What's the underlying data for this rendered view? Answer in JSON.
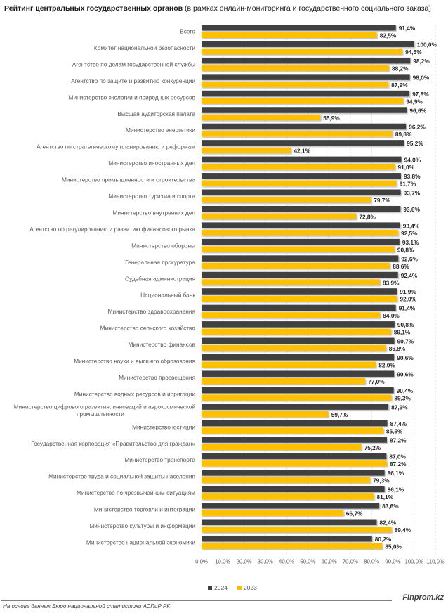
{
  "title_bold": "Рейтинг центральных государственных органов",
  "title_rest": " (в рамках онлайн-мониторинга и государственного социального заказа)",
  "legend": [
    {
      "label": "2024",
      "color": "#404040"
    },
    {
      "label": "2023",
      "color": "#ffc000"
    }
  ],
  "footer": {
    "source": "На основе данных Бюро национальной статистики АСПиР РК",
    "brand": "Finprom.kz"
  },
  "chart_data": {
    "type": "bar",
    "orientation": "horizontal",
    "title": "Рейтинг центральных государственных органов (в рамках онлайн-мониторинга и государственного социального заказа)",
    "xlabel": "",
    "ylabel": "",
    "xlim": [
      0,
      110
    ],
    "x_ticks": [
      "0,0%",
      "10,0%",
      "20,0%",
      "30,0%",
      "40,0%",
      "50,0%",
      "60,0%",
      "70,0%",
      "80,0%",
      "90,0%",
      "100,0%",
      "110,0%"
    ],
    "grid": "vertical dashed",
    "legend_position": "bottom",
    "categories": [
      "Всего",
      "Комитет национальной безопасности",
      "Агентство по делам государственной службы",
      "Агентство по защите и развитию конкуренции",
      "Министерство экологии и природных ресурсов",
      "Высшая аудиторская палата",
      "Министерство энергетики",
      "Агентство по стратегическому планированию и реформам",
      "Министерство иностранных дел",
      "Министерство промышленности и строительства",
      "Министерство туризма и спорта",
      "Министерство внутренних дел",
      "Агентство по регулированию и развитию финансового рынка",
      "Министерство обороны",
      "Генеральная прокуратура",
      "Судебная администрация",
      "Национальный банк",
      "Министерство здравоохранения",
      "Министерство сельского хозяйства",
      "Министерство финансов",
      "Министерство науки и высшего образования",
      "Министерство просвещения",
      "Министерство водных ресурсов и ирригации",
      "Министерство цифрового развития, инноваций и аэрокосмической|промышленности",
      "Министерство юстиции",
      "Государственная корпорация «Правительство для граждан»",
      "Министерство транспорта",
      "Министерство труда и социальной защиты населения",
      "Министерство по чрезвычайным ситуациям",
      "Министерство торговли и интеграции",
      "Министерство культуры и информации",
      "Министерство национальной экономики"
    ],
    "series": [
      {
        "name": "2024",
        "color": "#404040",
        "values": [
          91.4,
          100.0,
          98.2,
          98.0,
          97.8,
          96.6,
          96.2,
          95.2,
          94.0,
          93.8,
          93.7,
          93.6,
          93.4,
          93.1,
          92.6,
          92.4,
          91.9,
          91.4,
          90.8,
          90.7,
          90.6,
          90.6,
          90.4,
          87.9,
          87.4,
          87.2,
          87.0,
          86.1,
          86.1,
          83.6,
          82.4,
          80.2
        ],
        "labels": [
          "91,4%",
          "100,0%",
          "98,2%",
          "98,0%",
          "97,8%",
          "96,6%",
          "96,2%",
          "95,2%",
          "94,0%",
          "93,8%",
          "93,7%",
          "93,6%",
          "93,4%",
          "93,1%",
          "92,6%",
          "92,4%",
          "91,9%",
          "91,4%",
          "90,8%",
          "90,7%",
          "90,6%",
          "90,6%",
          "90,4%",
          "87,9%",
          "87,4%",
          "87,2%",
          "87,0%",
          "86,1%",
          "86,1%",
          "83,6%",
          "82,4%",
          "80,2%"
        ]
      },
      {
        "name": "2023",
        "color": "#ffc000",
        "values": [
          82.5,
          94.5,
          88.2,
          87.9,
          94.9,
          55.9,
          89.8,
          42.1,
          91.0,
          91.7,
          79.7,
          72.8,
          92.5,
          90.8,
          88.6,
          83.9,
          92.0,
          84.0,
          89.1,
          86.8,
          82.0,
          77.0,
          89.3,
          59.7,
          85.5,
          75.2,
          87.2,
          79.3,
          81.1,
          66.7,
          89.4,
          85.0
        ],
        "labels": [
          "82,5%",
          "94,5%",
          "88,2%",
          "87,9%",
          "94,9%",
          "55,9%",
          "89,8%",
          "42,1%",
          "91,0%",
          "91,7%",
          "79,7%",
          "72,8%",
          "92,5%",
          "90,8%",
          "88,6%",
          "83,9%",
          "92,0%",
          "84,0%",
          "89,1%",
          "86,8%",
          "82,0%",
          "77,0%",
          "89,3%",
          "59,7%",
          "85,5%",
          "75,2%",
          "87,2%",
          "79,3%",
          "81,1%",
          "66,7%",
          "89,4%",
          "85,0%"
        ]
      }
    ]
  }
}
